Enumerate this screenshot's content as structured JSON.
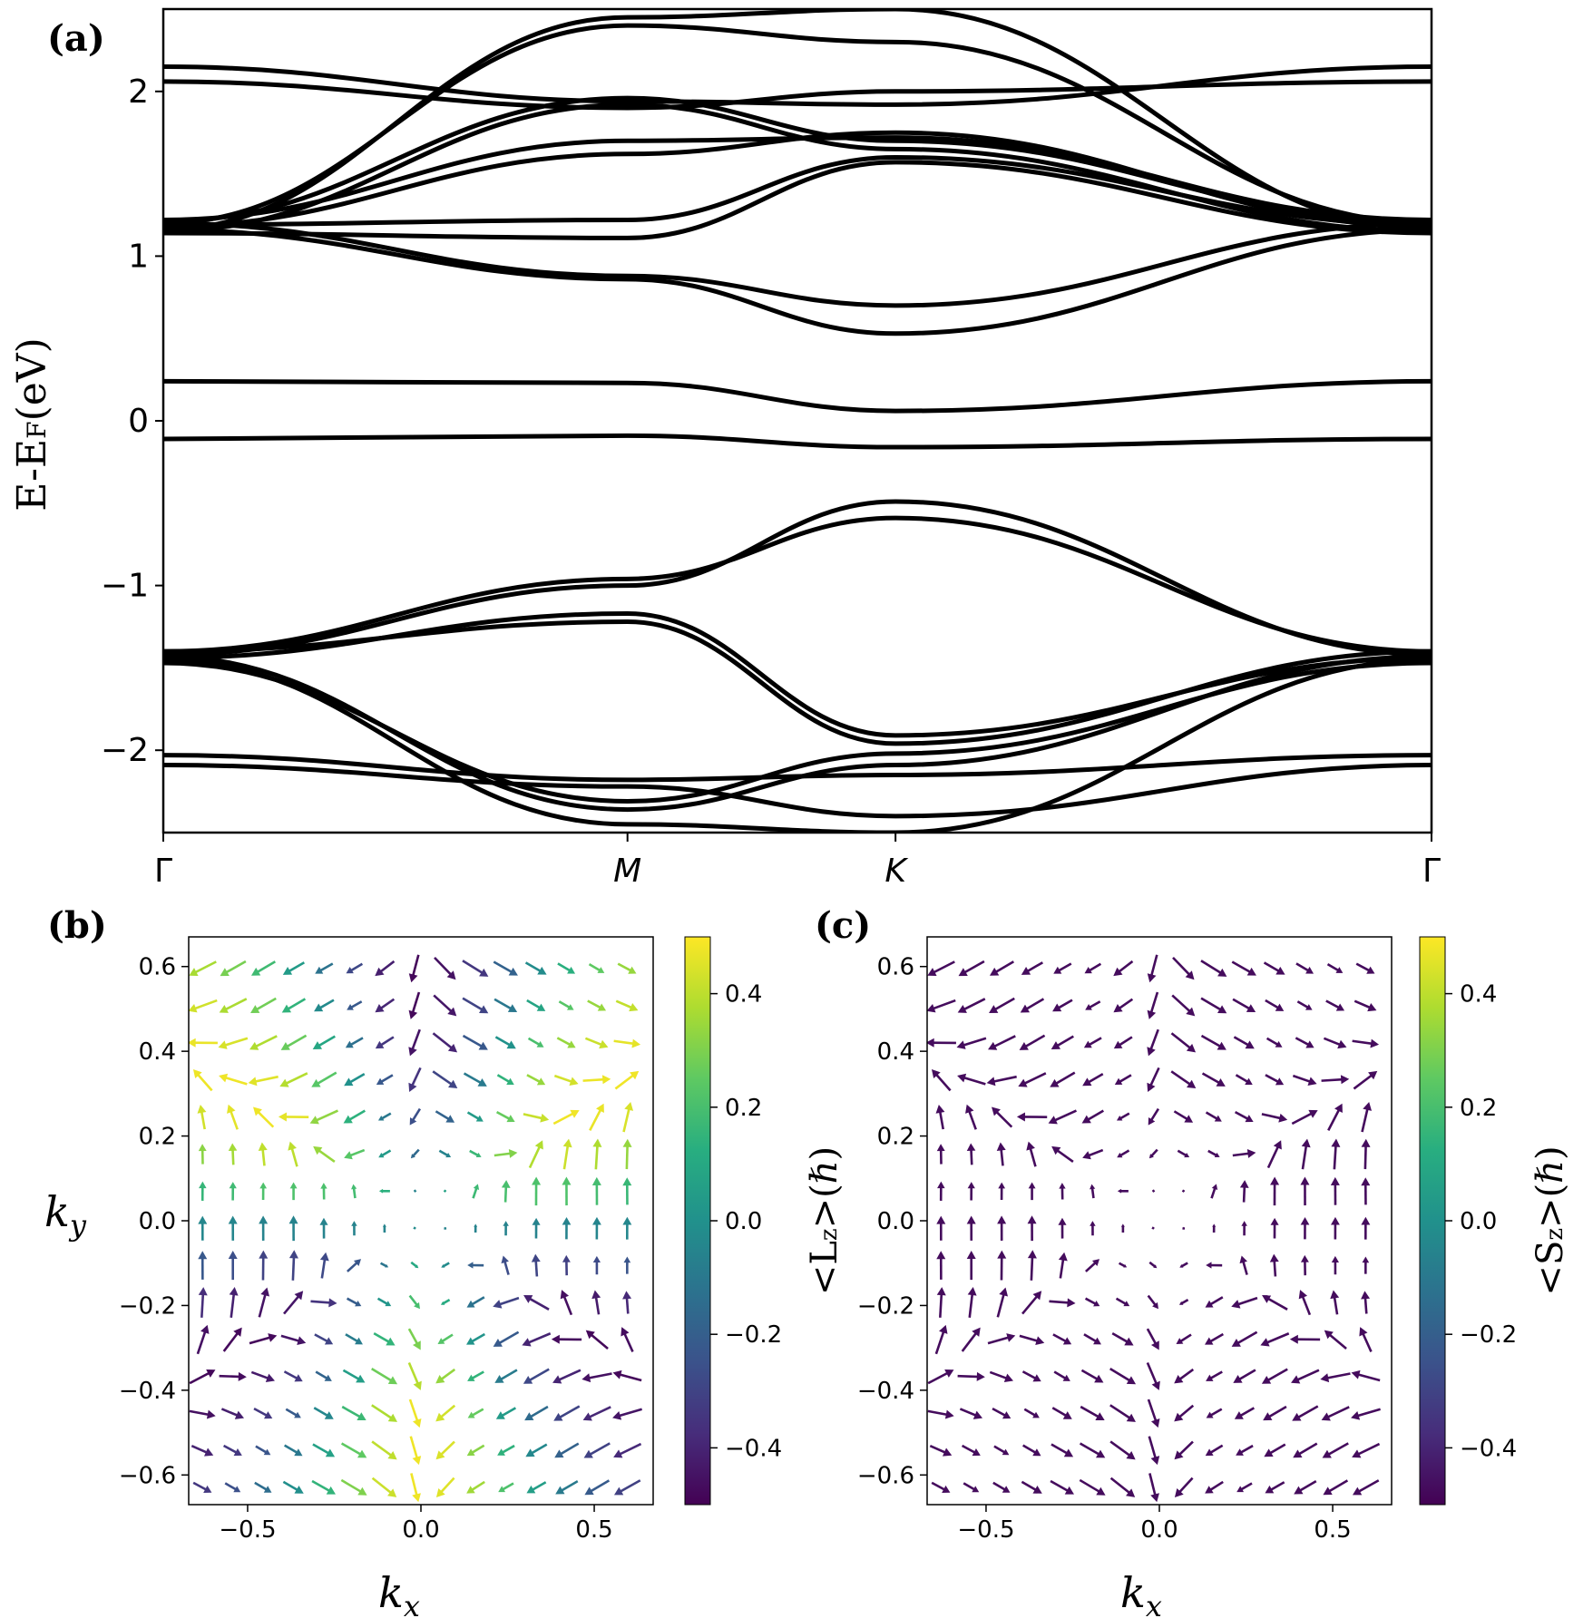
{
  "chart_data": [
    {
      "id": "a",
      "panel_label": "(a)",
      "type": "line",
      "title": "",
      "ylabel": "E-E",
      "ylabel_sub": "F",
      "ylabel_suffix": "(eV)",
      "ylim": [
        -2.5,
        2.5
      ],
      "yticks": [
        {
          "v": 2,
          "label": "2"
        },
        {
          "v": 1,
          "label": "1"
        },
        {
          "v": 0,
          "label": "0"
        },
        {
          "v": -1,
          "label": "−1"
        },
        {
          "v": -2,
          "label": "−2"
        }
      ],
      "xticks": [
        {
          "v": 0,
          "label": "Γ"
        },
        {
          "v": 1,
          "label": "M"
        },
        {
          "v": 1.5774,
          "label": "K"
        },
        {
          "v": 2.7321,
          "label": "Γ"
        }
      ],
      "xlim": [
        0,
        2.7321
      ],
      "x_keys": [
        0,
        1,
        1.5774,
        2.7321
      ],
      "series": [
        {
          "name": "b01",
          "values": [
            -0.11,
            -0.09,
            -0.16,
            -0.11
          ]
        },
        {
          "name": "b02",
          "values": [
            0.24,
            0.23,
            0.06,
            0.24
          ]
        },
        {
          "name": "b03",
          "values": [
            1.16,
            0.86,
            0.53,
            1.16
          ]
        },
        {
          "name": "b04",
          "values": [
            1.2,
            0.88,
            0.7,
            1.2
          ]
        },
        {
          "name": "b05",
          "values": [
            1.14,
            1.11,
            1.57,
            1.14
          ]
        },
        {
          "name": "b06",
          "values": [
            1.19,
            1.22,
            1.6,
            1.19
          ]
        },
        {
          "name": "b07",
          "values": [
            1.18,
            1.62,
            1.75,
            1.18
          ]
        },
        {
          "name": "b08",
          "values": [
            1.22,
            1.7,
            1.72,
            1.22
          ]
        },
        {
          "name": "b09",
          "values": [
            1.15,
            1.92,
            1.65,
            1.15
          ]
        },
        {
          "name": "b10",
          "values": [
            1.21,
            1.96,
            1.7,
            1.21
          ]
        },
        {
          "name": "b11",
          "values": [
            2.06,
            1.9,
            2.0,
            2.06
          ]
        },
        {
          "name": "b12",
          "values": [
            2.15,
            1.94,
            1.92,
            2.15
          ]
        },
        {
          "name": "b13",
          "values": [
            1.16,
            2.45,
            2.5,
            1.16
          ]
        },
        {
          "name": "b14",
          "values": [
            1.2,
            2.4,
            2.3,
            1.2
          ]
        },
        {
          "name": "b15",
          "values": [
            -1.42,
            -1.0,
            -0.49,
            -1.42
          ]
        },
        {
          "name": "b16",
          "values": [
            -1.4,
            -0.96,
            -0.59,
            -1.4
          ]
        },
        {
          "name": "b17",
          "values": [
            -1.44,
            -1.17,
            -1.91,
            -1.44
          ]
        },
        {
          "name": "b18",
          "values": [
            -1.4,
            -1.22,
            -1.96,
            -1.4
          ]
        },
        {
          "name": "b19",
          "values": [
            -1.47,
            -2.31,
            -2.02,
            -1.47
          ]
        },
        {
          "name": "b20",
          "values": [
            -1.43,
            -2.36,
            -2.09,
            -1.43
          ]
        },
        {
          "name": "b21",
          "values": [
            -2.03,
            -2.18,
            -2.15,
            -2.03
          ]
        },
        {
          "name": "b22",
          "values": [
            -2.09,
            -2.22,
            -2.4,
            -2.09
          ]
        },
        {
          "name": "b23",
          "values": [
            -1.45,
            -2.45,
            -2.5,
            -1.45
          ]
        }
      ]
    },
    {
      "id": "b",
      "panel_label": "(b)",
      "type": "quiver",
      "xlabel": "k",
      "xlabel_sub": "x",
      "ylabel": "k",
      "ylabel_sub": "y",
      "xlim": [
        -0.67,
        0.67
      ],
      "ylim": [
        -0.67,
        0.67
      ],
      "xticks": [
        {
          "v": -0.5,
          "label": "−0.5"
        },
        {
          "v": 0,
          "label": "0.0"
        },
        {
          "v": 0.5,
          "label": "0.5"
        }
      ],
      "yticks": [
        {
          "v": 0.6,
          "label": "0.6"
        },
        {
          "v": 0.4,
          "label": "0.4"
        },
        {
          "v": 0.2,
          "label": "0.2"
        },
        {
          "v": 0,
          "label": "0.0"
        },
        {
          "v": -0.2,
          "label": "−0.2"
        },
        {
          "v": -0.4,
          "label": "−0.4"
        },
        {
          "v": -0.6,
          "label": "−0.6"
        }
      ],
      "colorbar_label": "<L",
      "colorbar_sub": "z",
      "colorbar_suffix": ">(ℏ)",
      "clim": [
        -0.5,
        0.5
      ],
      "cticks": [
        {
          "v": 0.4,
          "label": "0.4"
        },
        {
          "v": 0.2,
          "label": "0.2"
        },
        {
          "v": 0,
          "label": "0.0"
        },
        {
          "v": -0.2,
          "label": "−0.2"
        },
        {
          "v": -0.4,
          "label": "−0.4"
        }
      ],
      "grid": {
        "start": -0.63,
        "step": 0.0875,
        "n": 15
      },
      "color_mode": "Lz"
    },
    {
      "id": "c",
      "panel_label": "(c)",
      "type": "quiver",
      "xlabel": "k",
      "xlabel_sub": "x",
      "ylabel": "",
      "ylabel_sub": "",
      "xlim": [
        -0.67,
        0.67
      ],
      "ylim": [
        -0.67,
        0.67
      ],
      "xticks": [
        {
          "v": -0.5,
          "label": "−0.5"
        },
        {
          "v": 0,
          "label": "0.0"
        },
        {
          "v": 0.5,
          "label": "0.5"
        }
      ],
      "yticks": [
        {
          "v": 0.6,
          "label": "0.6"
        },
        {
          "v": 0.4,
          "label": "0.4"
        },
        {
          "v": 0.2,
          "label": "0.2"
        },
        {
          "v": 0,
          "label": "0.0"
        },
        {
          "v": -0.2,
          "label": "−0.2"
        },
        {
          "v": -0.4,
          "label": "−0.4"
        },
        {
          "v": -0.6,
          "label": "−0.6"
        }
      ],
      "colorbar_label": "<S",
      "colorbar_sub": "z",
      "colorbar_suffix": ">(ℏ)",
      "clim": [
        -0.5,
        0.5
      ],
      "cticks": [
        {
          "v": 0.4,
          "label": "0.4"
        },
        {
          "v": 0.2,
          "label": "0.2"
        },
        {
          "v": 0,
          "label": "0.0"
        },
        {
          "v": -0.2,
          "label": "−0.2"
        },
        {
          "v": -0.4,
          "label": "−0.4"
        }
      ],
      "grid": {
        "start": -0.63,
        "step": 0.0875,
        "n": 15
      },
      "color_mode": "Sz"
    }
  ]
}
